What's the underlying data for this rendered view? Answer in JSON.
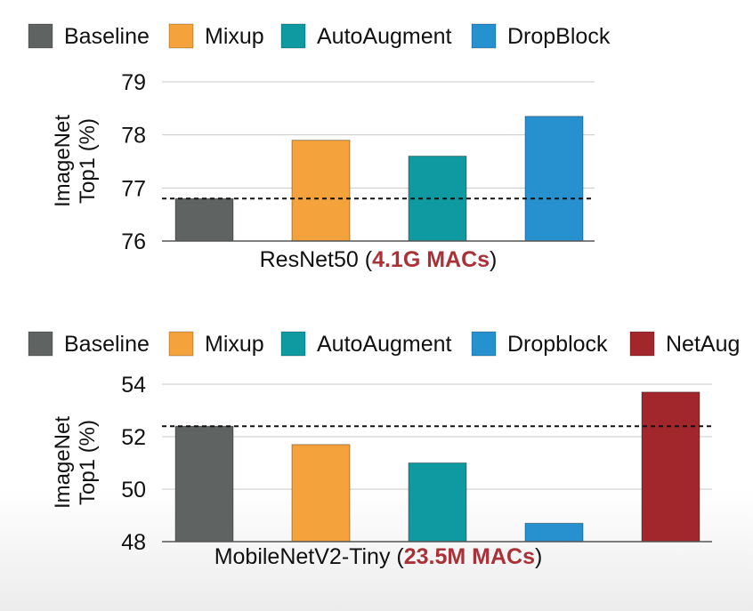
{
  "chart_data": [
    {
      "type": "bar",
      "legend": [
        {
          "label": "Baseline",
          "color": "#5f6361"
        },
        {
          "label": "Mixup",
          "color": "#f4a23c"
        },
        {
          "label": "AutoAugment",
          "color": "#0e9aa0"
        },
        {
          "label": "DropBlock",
          "color": "#2791d0"
        }
      ],
      "categories": [
        "Baseline",
        "Mixup",
        "AutoAugment",
        "DropBlock"
      ],
      "values": [
        76.8,
        77.9,
        77.6,
        78.35
      ],
      "colors": [
        "#5f6361",
        "#f4a23c",
        "#0e9aa0",
        "#2791d0"
      ],
      "ylabel_lines": [
        "ImageNet",
        "Top1 (%)"
      ],
      "ylim": [
        76,
        79
      ],
      "yticks": [
        76,
        77,
        78,
        79
      ],
      "baseline_ref": 76.8,
      "grid": true,
      "legend_position": "top",
      "caption_prefix": "ResNet50 (",
      "caption_highlight": "4.1G MACs",
      "caption_suffix": ")",
      "highlight_color": "#a83238"
    },
    {
      "type": "bar",
      "legend": [
        {
          "label": "Baseline",
          "color": "#5f6361"
        },
        {
          "label": "Mixup",
          "color": "#f4a23c"
        },
        {
          "label": "AutoAugment",
          "color": "#0e9aa0"
        },
        {
          "label": "Dropblock",
          "color": "#2791d0"
        },
        {
          "label": "NetAug",
          "color": "#a2272d"
        }
      ],
      "categories": [
        "Baseline",
        "Mixup",
        "AutoAugment",
        "Dropblock",
        "NetAug"
      ],
      "values": [
        52.4,
        51.7,
        51.0,
        48.7,
        53.7
      ],
      "colors": [
        "#5f6361",
        "#f4a23c",
        "#0e9aa0",
        "#2791d0",
        "#a2272d"
      ],
      "ylabel_lines": [
        "ImageNet",
        "Top1 (%)"
      ],
      "ylim": [
        48,
        54
      ],
      "yticks": [
        48,
        50,
        52,
        54
      ],
      "baseline_ref": 52.4,
      "grid": true,
      "legend_position": "top",
      "caption_prefix": "MobileNetV2-Tiny (",
      "caption_highlight": "23.5M MACs",
      "caption_suffix": ")",
      "highlight_color": "#a83238"
    }
  ]
}
